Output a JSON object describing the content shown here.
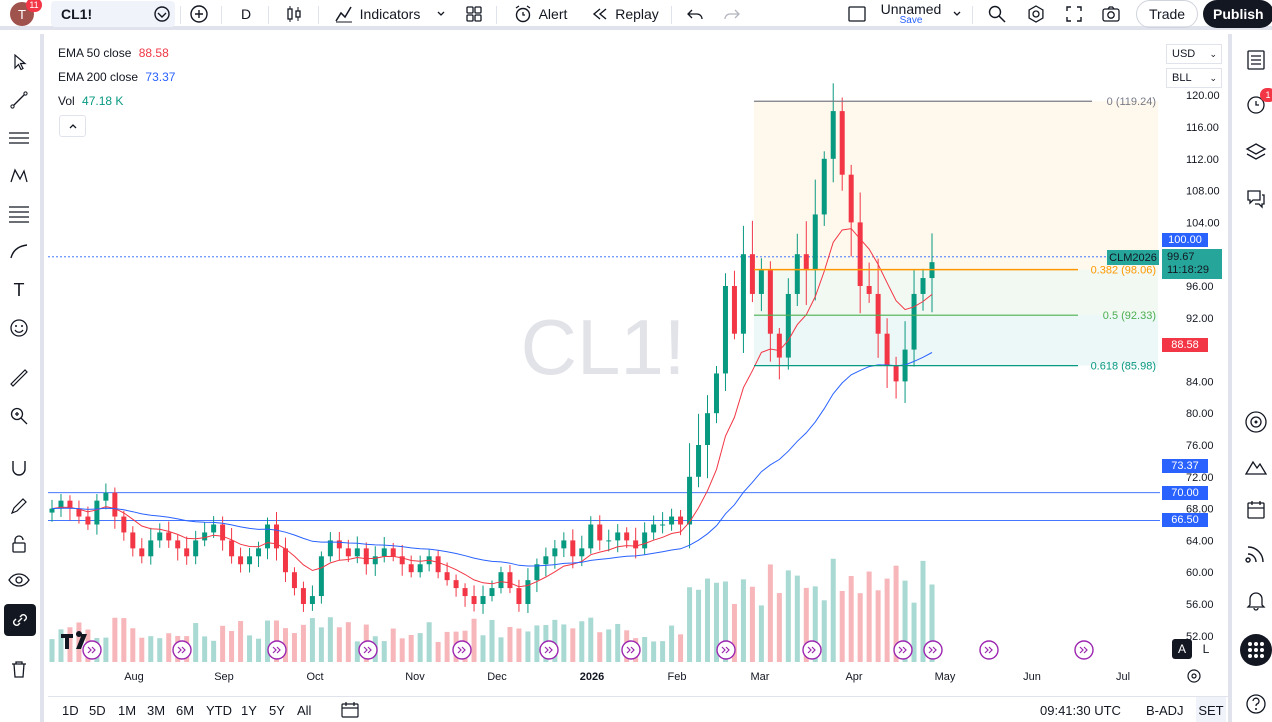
{
  "topbar": {
    "notifications": "11",
    "symbol": "CL1!",
    "interval": "D",
    "indicators": "Indicators",
    "alert": "Alert",
    "replay": "Replay",
    "layout_name": "Unnamed",
    "layout_save": "Save",
    "trade": "Trade",
    "publish": "Publish"
  },
  "legend": {
    "ema50_label": "EMA 50 close",
    "ema50_value": "88.58",
    "ema200_label": "EMA 200 close",
    "ema200_value": "73.37",
    "vol_label": "Vol",
    "vol_value": "47.18 K"
  },
  "watermark": "CL1!",
  "currency": "USD",
  "unit": "BLL",
  "contract_label": "CLM2026",
  "last_price": "99.67",
  "countdown": "11:18:29",
  "price_tags": {
    "p100": "100.00",
    "ema50": "88.58",
    "ema200": "73.37",
    "p70": "70.00",
    "p66": "66.50"
  },
  "fib_levels": [
    {
      "label": "0 (119.24)",
      "price": 119.24,
      "color": "#787b86"
    },
    {
      "label": "0.382 (98.06)",
      "price": 98.06,
      "color": "#ff9800"
    },
    {
      "label": "0.5 (92.33)",
      "price": 92.33,
      "color": "#4caf50"
    },
    {
      "label": "0.618 (85.98)",
      "price": 85.98,
      "color": "#089981"
    }
  ],
  "price_axis": {
    "ticks": [
      "120.00",
      "116.00",
      "112.00",
      "108.00",
      "104.00",
      "96.00",
      "92.00",
      "84.00",
      "80.00",
      "76.00",
      "72.00",
      "68.00",
      "64.00",
      "60.00",
      "56.00",
      "52.00"
    ],
    "values": [
      120,
      116,
      112,
      108,
      104,
      96,
      92,
      84,
      80,
      76,
      72,
      68,
      64,
      60,
      56,
      52
    ]
  },
  "time_axis": [
    "Aug",
    "Sep",
    "Oct",
    "Nov",
    "Dec",
    "2026",
    "Feb",
    "Mar",
    "Apr",
    "May",
    "Jun",
    "Jul"
  ],
  "horizontal_lines": [
    70.0,
    66.5
  ],
  "bottom": {
    "ranges": [
      "1D",
      "5D",
      "1M",
      "3M",
      "6M",
      "YTD",
      "1Y",
      "5Y",
      "All"
    ],
    "time": "09:41:30 UTC",
    "adj": "B-ADJ",
    "session": "SET"
  },
  "scale_buttons": {
    "auto": "A",
    "log": "L"
  },
  "right_badge": "1",
  "chart_data": {
    "type": "candlestick",
    "symbol": "CL1!",
    "interval": "D",
    "x_range": [
      "Jul",
      "Apr"
    ],
    "ylim": [
      52,
      120
    ],
    "series": [
      {
        "name": "EMA 50 close",
        "last": 88.58,
        "color": "#f23645"
      },
      {
        "name": "EMA 200 close",
        "last": 73.37,
        "color": "#2962ff"
      },
      {
        "name": "Vol",
        "last": "47.18 K"
      }
    ],
    "close_path": [
      68,
      69,
      68,
      67,
      66,
      69,
      70,
      67,
      65,
      63,
      62,
      64,
      65,
      64,
      63,
      62,
      64,
      65,
      66,
      64,
      62,
      61,
      62,
      63,
      66,
      63,
      60,
      58,
      56,
      57,
      62,
      64,
      63,
      62,
      63,
      61,
      62,
      63,
      62,
      61,
      60,
      61,
      62,
      60,
      59,
      58,
      57,
      56,
      57,
      58,
      60,
      58,
      56,
      59,
      61,
      62,
      63,
      64,
      62,
      63,
      66,
      64,
      64,
      65,
      64,
      63,
      65,
      66,
      66,
      67,
      66,
      72,
      76,
      80,
      85,
      96,
      90,
      100,
      95,
      98,
      90,
      87,
      95,
      100,
      98,
      105,
      112,
      118,
      110,
      104,
      96,
      95,
      90,
      86,
      84,
      88,
      95,
      97,
      99
    ]
  }
}
